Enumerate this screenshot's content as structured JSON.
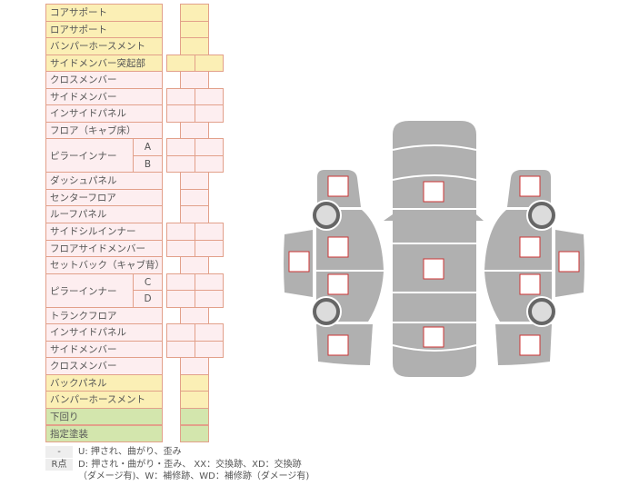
{
  "colors": {
    "yellow": "#fbefb5",
    "pink": "#fdeef0",
    "green": "#d3e6ad",
    "border": "#e2a08a",
    "body": "#b0b0b0",
    "mark": "#cc3333"
  },
  "rows": [
    {
      "label": "コアサポート",
      "type": "yellow",
      "boxes": 1
    },
    {
      "label": "ロアサポート",
      "type": "yellow",
      "boxes": 1
    },
    {
      "label": "バンパーホースメント",
      "type": "yellow",
      "boxes": 1
    },
    {
      "label": "サイドメンバー突起部",
      "type": "yellow",
      "boxes": 2
    },
    {
      "label": "クロスメンバー",
      "type": "pink",
      "boxes": 1
    },
    {
      "label": "サイドメンバー",
      "type": "pink",
      "boxes": 2
    },
    {
      "label": "インサイドパネル",
      "type": "pink",
      "boxes": 2
    },
    {
      "label": "フロア（キャブ床）",
      "type": "pink",
      "boxes": 1
    },
    {
      "label": "ピラーインナー",
      "subs": [
        "A",
        "B"
      ],
      "type": "pink",
      "boxes": 2
    },
    {
      "label": "ダッシュパネル",
      "type": "pink",
      "boxes": 1
    },
    {
      "label": "センターフロア",
      "type": "pink",
      "boxes": 1
    },
    {
      "label": "ルーフパネル",
      "type": "pink",
      "boxes": 1
    },
    {
      "label": "サイドシルインナー",
      "type": "pink",
      "boxes": 2
    },
    {
      "label": "フロアサイドメンバー",
      "type": "pink",
      "boxes": 2
    },
    {
      "label": "セットバック（キャブ背）",
      "type": "pink",
      "boxes": 1
    },
    {
      "label": "ピラーインナー",
      "subs": [
        "C",
        "D"
      ],
      "type": "pink",
      "boxes": 2
    },
    {
      "label": "トランクフロア",
      "type": "pink",
      "boxes": 1
    },
    {
      "label": "インサイドパネル",
      "type": "pink",
      "boxes": 2
    },
    {
      "label": "サイドメンバー",
      "type": "pink",
      "boxes": 2
    },
    {
      "label": "クロスメンバー",
      "type": "pink",
      "boxes": 1
    },
    {
      "label": "バックパネル",
      "type": "yellow",
      "boxes": 1
    },
    {
      "label": "バンパーホースメント",
      "type": "yellow",
      "boxes": 1
    },
    {
      "label": "下回り",
      "type": "green",
      "boxes": 1
    },
    {
      "label": "指定塗装",
      "type": "green",
      "boxes": 1
    }
  ],
  "legend": {
    "tag1": "-",
    "text1": "U: 押され、曲がり、歪み",
    "tag2": "R点",
    "text2": "D: 押され・曲がり・歪み、 XX：交換跡、XD：交換跡",
    "text3": "（ダメージ有)、W：補修跡、WD：補修跡（ダメージ有)"
  }
}
